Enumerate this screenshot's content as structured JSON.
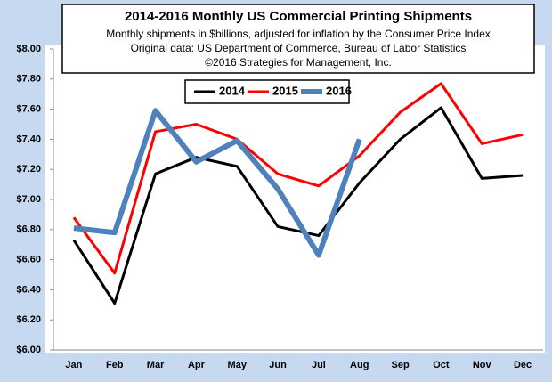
{
  "chart_data": {
    "type": "line",
    "title": "2014-2016 Monthly US Commercial Printing Shipments",
    "subtitle": [
      "Monthly shipments in $billions, adjusted for inflation by the Consumer Price Index",
      "Original data: US Department of Commerce, Bureau of Labor Statistics",
      "©2016 Strategies for Management, Inc."
    ],
    "categories": [
      "Jan",
      "Feb",
      "Mar",
      "Apr",
      "May",
      "Jun",
      "Jul",
      "Aug",
      "Sep",
      "Oct",
      "Nov",
      "Dec"
    ],
    "series": [
      {
        "name": "2014",
        "color": "#000000",
        "values": [
          6.73,
          6.31,
          7.17,
          7.28,
          7.22,
          6.82,
          6.76,
          7.11,
          7.4,
          7.61,
          7.14,
          7.16
        ]
      },
      {
        "name": "2015",
        "color": "#ff0000",
        "values": [
          6.88,
          6.51,
          7.45,
          7.5,
          7.4,
          7.17,
          7.09,
          7.29,
          7.58,
          7.77,
          7.37,
          7.43
        ]
      },
      {
        "name": "2016",
        "color": "#4f81bd",
        "values": [
          6.81,
          6.78,
          7.59,
          7.25,
          7.39,
          7.07,
          6.63,
          7.4,
          null,
          null,
          null,
          null
        ]
      }
    ],
    "ylim": [
      6,
      8
    ],
    "yticks": [
      {
        "value": 6,
        "label": "$6.00"
      },
      {
        "value": 6.2,
        "label": "$6.20"
      },
      {
        "value": 6.4,
        "label": "$6.40"
      },
      {
        "value": 6.6,
        "label": "$6.60"
      },
      {
        "value": 6.8,
        "label": "$6.80"
      },
      {
        "value": 7,
        "label": "$7.00"
      },
      {
        "value": 7.2,
        "label": "$7.20"
      },
      {
        "value": 7.4,
        "label": "$7.40"
      },
      {
        "value": 7.6,
        "label": "$7.60"
      },
      {
        "value": 7.8,
        "label": "$7.80"
      },
      {
        "value": 8,
        "label": "$8.00"
      }
    ],
    "grid": false
  }
}
